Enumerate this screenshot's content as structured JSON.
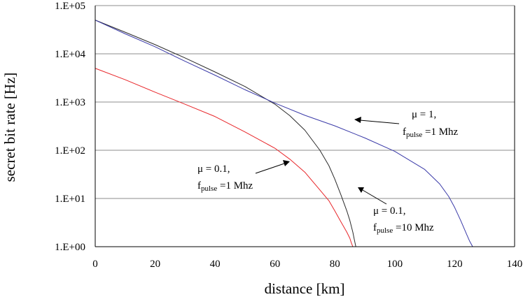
{
  "chart_data": {
    "type": "line",
    "title": "",
    "xlabel": "distance [km]",
    "ylabel": "secret bit rate  [Hz]",
    "xlim": [
      0,
      140
    ],
    "ylim": [
      1,
      100000
    ],
    "yscale": "log",
    "grid": "horizontal",
    "x_ticks": [
      "0",
      "20",
      "40",
      "60",
      "80",
      "100",
      "120",
      "140"
    ],
    "y_ticks": [
      "1.E+00",
      "1.E+01",
      "1.E+02",
      "1.E+03",
      "1.E+04",
      "1.E+05"
    ],
    "series": [
      {
        "name": "mu = 0.1, f_pulse = 1 Mhz",
        "color": "#e8262a",
        "x": [
          0,
          10,
          20,
          30,
          40,
          50,
          60,
          65,
          70,
          75,
          78,
          80,
          82,
          84,
          85,
          85.5,
          86
        ],
        "y": [
          5000,
          2900,
          1600,
          900,
          500,
          240,
          110,
          65,
          35,
          15,
          9,
          5.5,
          3.3,
          2.0,
          1.5,
          1.2,
          1.0
        ]
      },
      {
        "name": "mu = 0.1, f_pulse = 10 Mhz",
        "color": "#2a2a2a",
        "x": [
          0,
          10,
          20,
          30,
          40,
          50,
          60,
          65,
          70,
          75,
          78,
          80,
          82,
          84,
          85,
          86,
          86.5,
          87
        ],
        "y": [
          50000,
          28000,
          15500,
          8200,
          4200,
          2100,
          900,
          520,
          260,
          100,
          48,
          25,
          12,
          5.5,
          3.5,
          2.0,
          1.4,
          1.0
        ]
      },
      {
        "name": "mu = 1, f_pulse = 1 Mhz",
        "color": "#3a3aa8",
        "x": [
          0,
          10,
          20,
          30,
          40,
          50,
          60,
          70,
          80,
          90,
          100,
          110,
          115,
          118,
          120,
          122,
          124,
          125,
          126
        ],
        "y": [
          50000,
          26000,
          14000,
          7000,
          3600,
          1800,
          950,
          530,
          320,
          180,
          95,
          40,
          20,
          11,
          6.5,
          3.5,
          1.8,
          1.3,
          1.0
        ]
      }
    ],
    "annotations": [
      {
        "id": "ann-mu1",
        "line1": "μ = 1,",
        "f": "f",
        "sub": "pulse",
        "rest": " =1 Mhz"
      },
      {
        "id": "ann-mu01-1",
        "line1": "μ = 0.1,",
        "f": "f",
        "sub": "pulse",
        "rest": " =1 Mhz"
      },
      {
        "id": "ann-mu01-10",
        "line1": "μ = 0.1,",
        "f": "f",
        "sub": "pulse",
        "rest": " =10 Mhz"
      }
    ]
  }
}
